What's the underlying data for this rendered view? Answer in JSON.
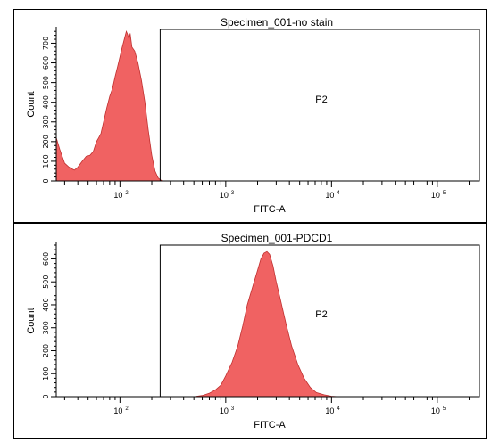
{
  "chart_data": [
    {
      "type": "area",
      "title": "Specimen_001-no stain",
      "xlabel": "FITC-A",
      "ylabel": "Count",
      "x_scale": "log",
      "xlim": [
        25,
        250000
      ],
      "x_ticks": [
        {
          "value": 100,
          "base": "10",
          "exp": "2"
        },
        {
          "value": 1000,
          "base": "10",
          "exp": "3"
        },
        {
          "value": 10000,
          "base": "10",
          "exp": "4"
        },
        {
          "value": 100000,
          "base": "10",
          "exp": "5"
        }
      ],
      "ylim": [
        0,
        770
      ],
      "y_ticks": [
        0,
        100,
        200,
        300,
        400,
        500,
        600,
        700
      ],
      "gate": {
        "label": "P2",
        "x_min": 240
      },
      "color": "#f06262",
      "points": [
        [
          25,
          220
        ],
        [
          27,
          160
        ],
        [
          30,
          90
        ],
        [
          33,
          70
        ],
        [
          37,
          55
        ],
        [
          40,
          70
        ],
        [
          44,
          100
        ],
        [
          48,
          125
        ],
        [
          52,
          130
        ],
        [
          56,
          150
        ],
        [
          60,
          200
        ],
        [
          63,
          220
        ],
        [
          66,
          240
        ],
        [
          70,
          300
        ],
        [
          75,
          370
        ],
        [
          80,
          430
        ],
        [
          85,
          470
        ],
        [
          90,
          530
        ],
        [
          95,
          580
        ],
        [
          100,
          630
        ],
        [
          105,
          680
        ],
        [
          110,
          720
        ],
        [
          115,
          760
        ],
        [
          118,
          745
        ],
        [
          122,
          720
        ],
        [
          125,
          750
        ],
        [
          130,
          680
        ],
        [
          138,
          660
        ],
        [
          148,
          600
        ],
        [
          160,
          510
        ],
        [
          172,
          400
        ],
        [
          185,
          260
        ],
        [
          200,
          130
        ],
        [
          215,
          50
        ],
        [
          230,
          15
        ],
        [
          245,
          3
        ],
        [
          260,
          0
        ],
        [
          300,
          0
        ]
      ]
    },
    {
      "type": "area",
      "title": "Specimen_001-PDCD1",
      "xlabel": "FITC-A",
      "ylabel": "Count",
      "x_scale": "log",
      "xlim": [
        25,
        250000
      ],
      "x_ticks": [
        {
          "value": 100,
          "base": "10",
          "exp": "2"
        },
        {
          "value": 1000,
          "base": "10",
          "exp": "3"
        },
        {
          "value": 10000,
          "base": "10",
          "exp": "4"
        },
        {
          "value": 100000,
          "base": "10",
          "exp": "5"
        }
      ],
      "ylim": [
        0,
        660
      ],
      "y_ticks": [
        0,
        100,
        200,
        300,
        400,
        500,
        600
      ],
      "gate": {
        "label": "P2",
        "x_min": 240
      },
      "color": "#f06262",
      "points": [
        [
          500,
          0
        ],
        [
          600,
          5
        ],
        [
          700,
          15
        ],
        [
          800,
          30
        ],
        [
          900,
          50
        ],
        [
          1000,
          90
        ],
        [
          1150,
          150
        ],
        [
          1300,
          220
        ],
        [
          1450,
          310
        ],
        [
          1600,
          400
        ],
        [
          1800,
          480
        ],
        [
          2000,
          550
        ],
        [
          2150,
          600
        ],
        [
          2300,
          625
        ],
        [
          2450,
          632
        ],
        [
          2600,
          620
        ],
        [
          2800,
          570
        ],
        [
          3000,
          500
        ],
        [
          3300,
          420
        ],
        [
          3700,
          320
        ],
        [
          4200,
          220
        ],
        [
          4800,
          140
        ],
        [
          5500,
          80
        ],
        [
          6300,
          40
        ],
        [
          7200,
          18
        ],
        [
          8500,
          8
        ],
        [
          10000,
          2
        ],
        [
          11500,
          0
        ]
      ]
    }
  ]
}
